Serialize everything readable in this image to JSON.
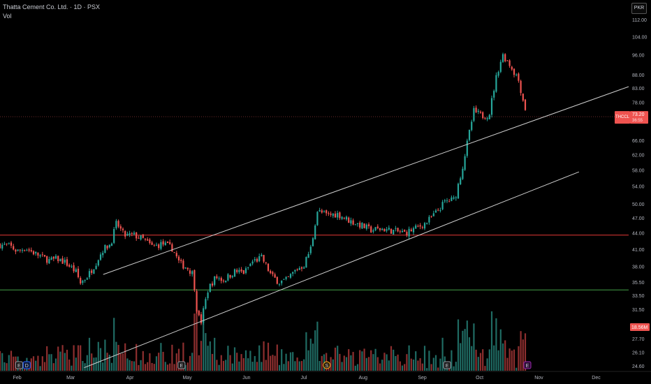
{
  "header": {
    "title": "Thatta Cement Co. Ltd. · 1D · PSX",
    "volume_label": "Vol"
  },
  "currency_button": "PKR",
  "colors": {
    "background": "#000000",
    "up": "#26a69a",
    "down": "#ef5350",
    "vol_up": "#1f6b63",
    "vol_down": "#8e2f2f",
    "resistance": "#e53935",
    "support": "#43a047",
    "channel": "#cfcfcf"
  },
  "chart_data": {
    "type": "candlestick",
    "ticker": "THCCL",
    "last_price": "73.20",
    "countdown": "36:55",
    "volume_last": "18.56M",
    "y_axis": {
      "scale": "log",
      "ticks": [
        "112.00",
        "104.00",
        "96.00",
        "88.00",
        "83.00",
        "78.00",
        "66.00",
        "62.00",
        "58.00",
        "54.00",
        "50.00",
        "47.00",
        "44.00",
        "41.00",
        "38.00",
        "35.50",
        "33.50",
        "31.50",
        "27.70",
        "26.10",
        "24.60"
      ]
    },
    "x_axis": {
      "range": [
        "2025-01-23",
        "2025-12-18"
      ],
      "ticks": [
        {
          "label": "Feb",
          "date": "2025-02-01"
        },
        {
          "label": "Mar",
          "date": "2025-03-01"
        },
        {
          "label": "Apr",
          "date": "2025-04-01"
        },
        {
          "label": "May",
          "date": "2025-05-01"
        },
        {
          "label": "Jun",
          "date": "2025-06-01"
        },
        {
          "label": "Jul",
          "date": "2025-07-01"
        },
        {
          "label": "Aug",
          "date": "2025-08-01"
        },
        {
          "label": "Sep",
          "date": "2025-09-01"
        },
        {
          "label": "Oct",
          "date": "2025-10-01"
        },
        {
          "label": "Nov",
          "date": "2025-11-01"
        },
        {
          "label": "Dec",
          "date": "2025-12-01"
        }
      ]
    },
    "close_path": [
      [
        "2025-01-23",
        41.8
      ],
      [
        "2025-01-28",
        41.6
      ],
      [
        "2025-02-01",
        40.6
      ],
      [
        "2025-02-05",
        41.2
      ],
      [
        "2025-02-10",
        40.3
      ],
      [
        "2025-02-14",
        39.6
      ],
      [
        "2025-02-18",
        39.0
      ],
      [
        "2025-02-22",
        39.3
      ],
      [
        "2025-02-26",
        38.7
      ],
      [
        "2025-03-01",
        37.9
      ],
      [
        "2025-03-04",
        37.0
      ],
      [
        "2025-03-06",
        35.3
      ],
      [
        "2025-03-10",
        36.5
      ],
      [
        "2025-03-14",
        38.5
      ],
      [
        "2025-03-18",
        41.0
      ],
      [
        "2025-03-22",
        42.0
      ],
      [
        "2025-03-25",
        46.0
      ],
      [
        "2025-03-29",
        43.5
      ],
      [
        "2025-04-03",
        43.6
      ],
      [
        "2025-04-08",
        42.8
      ],
      [
        "2025-04-13",
        41.4
      ],
      [
        "2025-04-18",
        42.0
      ],
      [
        "2025-04-23",
        41.2
      ],
      [
        "2025-04-27",
        38.5
      ],
      [
        "2025-05-01",
        37.8
      ],
      [
        "2025-05-04",
        36.8
      ],
      [
        "2025-05-06",
        31.5
      ],
      [
        "2025-05-08",
        29.5
      ],
      [
        "2025-05-12",
        34.5
      ],
      [
        "2025-05-16",
        36.3
      ],
      [
        "2025-05-20",
        35.8
      ],
      [
        "2025-05-26",
        37.2
      ],
      [
        "2025-05-31",
        37.0
      ],
      [
        "2025-06-04",
        38.8
      ],
      [
        "2025-06-09",
        39.5
      ],
      [
        "2025-06-14",
        36.5
      ],
      [
        "2025-06-18",
        35.5
      ],
      [
        "2025-06-22",
        35.8
      ],
      [
        "2025-06-27",
        37.5
      ],
      [
        "2025-07-01",
        38.2
      ],
      [
        "2025-07-05",
        41.5
      ],
      [
        "2025-07-08",
        48.5
      ],
      [
        "2025-07-13",
        47.6
      ],
      [
        "2025-07-19",
        47.8
      ],
      [
        "2025-07-25",
        46.4
      ],
      [
        "2025-07-31",
        45.5
      ],
      [
        "2025-08-05",
        44.6
      ],
      [
        "2025-08-11",
        44.8
      ],
      [
        "2025-08-17",
        44.4
      ],
      [
        "2025-08-23",
        44.0
      ],
      [
        "2025-08-29",
        45.0
      ],
      [
        "2025-09-03",
        46.0
      ],
      [
        "2025-09-08",
        48.0
      ],
      [
        "2025-09-13",
        50.5
      ],
      [
        "2025-09-18",
        51.0
      ],
      [
        "2025-09-22",
        58.5
      ],
      [
        "2025-09-25",
        66.5
      ],
      [
        "2025-09-28",
        75.0
      ],
      [
        "2025-10-02",
        73.5
      ],
      [
        "2025-10-06",
        73.8
      ],
      [
        "2025-10-10",
        88.0
      ],
      [
        "2025-10-13",
        96.0
      ],
      [
        "2025-10-16",
        93.0
      ],
      [
        "2025-10-19",
        89.0
      ],
      [
        "2025-10-21",
        87.0
      ],
      [
        "2025-10-24",
        78.0
      ],
      [
        "2025-10-26",
        73.2
      ]
    ],
    "horizontal_levels": [
      {
        "price": 43.6,
        "color_key": "resistance"
      },
      {
        "price": 34.3,
        "color_key": "support"
      }
    ],
    "channel_lines": [
      {
        "from": [
          "2025-03-18",
          36.7
        ],
        "to": [
          "2025-12-18",
          83.5
        ]
      },
      {
        "from": [
          "2025-03-08",
          24.4
        ],
        "to": [
          "2025-11-22",
          57.5
        ]
      }
    ],
    "event_markers": [
      {
        "date": "2025-02-02",
        "label": "E",
        "kind": "earnings"
      },
      {
        "date": "2025-02-06",
        "label": "D",
        "kind": "dividend"
      },
      {
        "date": "2025-04-28",
        "label": "E",
        "kind": "earnings"
      },
      {
        "date": "2025-07-13",
        "label": "S",
        "kind": "split"
      },
      {
        "date": "2025-09-14",
        "label": "E",
        "kind": "earnings"
      },
      {
        "date": "2025-10-26",
        "label": "E",
        "kind": "earnings-upcoming"
      }
    ]
  }
}
